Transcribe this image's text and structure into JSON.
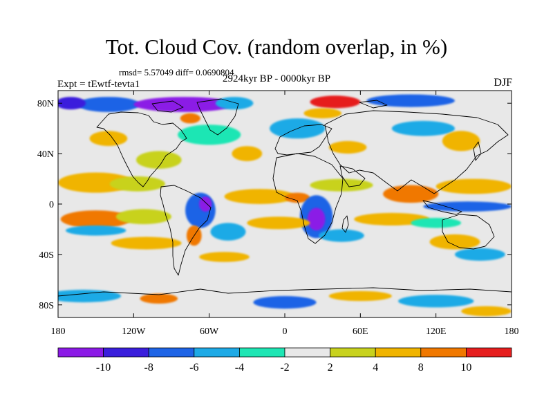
{
  "header": {
    "title": "Tot. Cloud Cov. (random overlap, in %)",
    "stats": "rmsd= 5.57049 diff= 0.0690804",
    "period": "2924kyr BP - 0000kyr BP",
    "experiment": "Expt = tEwtf-tevta1",
    "season": "DJF"
  },
  "map": {
    "type": "contour-filled",
    "lon_range": [
      -180,
      180
    ],
    "lat_range": [
      -90,
      90
    ],
    "lon_ticks": [
      {
        "value": -180,
        "label": "180"
      },
      {
        "value": -120,
        "label": "120W"
      },
      {
        "value": -60,
        "label": "60W"
      },
      {
        "value": 0,
        "label": "0"
      },
      {
        "value": 60,
        "label": "60E"
      },
      {
        "value": 120,
        "label": "120E"
      },
      {
        "value": 180,
        "label": "180"
      }
    ],
    "lat_ticks": [
      {
        "value": 80,
        "label": "80N"
      },
      {
        "value": 40,
        "label": "40N"
      },
      {
        "value": 0,
        "label": "0"
      },
      {
        "value": -40,
        "label": "40S"
      },
      {
        "value": -80,
        "label": "80S"
      }
    ],
    "background_color": "#e8e8e8",
    "regions": [
      {
        "bin": 2,
        "lon": -150,
        "lat": 17,
        "rx": 30,
        "ry": 8
      },
      {
        "bin": 1,
        "lon": -117,
        "lat": 16,
        "rx": 22,
        "ry": 6
      },
      {
        "bin": 3,
        "lon": -150,
        "lat": -12,
        "rx": 28,
        "ry": 7
      },
      {
        "bin": 1,
        "lon": -112,
        "lat": -10,
        "rx": 22,
        "ry": 6
      },
      {
        "bin": -2,
        "lon": -150,
        "lat": -21,
        "rx": 24,
        "ry": 4
      },
      {
        "bin": 2,
        "lon": -110,
        "lat": -31,
        "rx": 28,
        "ry": 5
      },
      {
        "bin": -3,
        "lon": -67,
        "lat": -5,
        "rx": 12,
        "ry": 14
      },
      {
        "bin": -5,
        "lon": -63,
        "lat": 0,
        "rx": 5,
        "ry": 6
      },
      {
        "bin": -2,
        "lon": -45,
        "lat": -22,
        "rx": 14,
        "ry": 7
      },
      {
        "bin": 3,
        "lon": -72,
        "lat": -25,
        "rx": 6,
        "ry": 8
      },
      {
        "bin": 2,
        "lon": -48,
        "lat": -42,
        "rx": 20,
        "ry": 4
      },
      {
        "bin": 2,
        "lon": -20,
        "lat": 6,
        "rx": 28,
        "ry": 6
      },
      {
        "bin": 3,
        "lon": 10,
        "lat": 5,
        "rx": 10,
        "ry": 4
      },
      {
        "bin": 1,
        "lon": 45,
        "lat": 15,
        "rx": 25,
        "ry": 5
      },
      {
        "bin": -3,
        "lon": 25,
        "lat": -10,
        "rx": 13,
        "ry": 17
      },
      {
        "bin": -5,
        "lon": 25,
        "lat": -12,
        "rx": 7,
        "ry": 9
      },
      {
        "bin": -2,
        "lon": 45,
        "lat": -25,
        "rx": 18,
        "ry": 5
      },
      {
        "bin": 2,
        "lon": -5,
        "lat": -15,
        "rx": 25,
        "ry": 5
      },
      {
        "bin": 3,
        "lon": 100,
        "lat": 8,
        "rx": 22,
        "ry": 7
      },
      {
        "bin": 2,
        "lon": 150,
        "lat": 14,
        "rx": 30,
        "ry": 6
      },
      {
        "bin": -3,
        "lon": 145,
        "lat": -2,
        "rx": 35,
        "ry": 4
      },
      {
        "bin": 2,
        "lon": 85,
        "lat": -12,
        "rx": 30,
        "ry": 5
      },
      {
        "bin": -1,
        "lon": 120,
        "lat": -15,
        "rx": 20,
        "ry": 4
      },
      {
        "bin": 2,
        "lon": 135,
        "lat": -30,
        "rx": 20,
        "ry": 6
      },
      {
        "bin": -2,
        "lon": 155,
        "lat": -40,
        "rx": 20,
        "ry": 5
      },
      {
        "bin": 1,
        "lon": -100,
        "lat": 35,
        "rx": 18,
        "ry": 7
      },
      {
        "bin": -1,
        "lon": -60,
        "lat": 55,
        "rx": 25,
        "ry": 8
      },
      {
        "bin": 2,
        "lon": -30,
        "lat": 40,
        "rx": 12,
        "ry": 6
      },
      {
        "bin": -2,
        "lon": 10,
        "lat": 60,
        "rx": 22,
        "ry": 8
      },
      {
        "bin": 2,
        "lon": 50,
        "lat": 45,
        "rx": 15,
        "ry": 5
      },
      {
        "bin": -2,
        "lon": 110,
        "lat": 60,
        "rx": 25,
        "ry": 6
      },
      {
        "bin": 2,
        "lon": 140,
        "lat": 50,
        "rx": 15,
        "ry": 8
      },
      {
        "bin": 2,
        "lon": -140,
        "lat": 52,
        "rx": 15,
        "ry": 6
      },
      {
        "bin": -3,
        "lon": -140,
        "lat": 79,
        "rx": 25,
        "ry": 6
      },
      {
        "bin": -5,
        "lon": -80,
        "lat": 79,
        "rx": 40,
        "ry": 6
      },
      {
        "bin": -2,
        "lon": -40,
        "lat": 80,
        "rx": 15,
        "ry": 5
      },
      {
        "bin": 4,
        "lon": 40,
        "lat": 81,
        "rx": 20,
        "ry": 5
      },
      {
        "bin": -3,
        "lon": 100,
        "lat": 82,
        "rx": 35,
        "ry": 5
      },
      {
        "bin": -4,
        "lon": -170,
        "lat": 80,
        "rx": 12,
        "ry": 5
      },
      {
        "bin": 3,
        "lon": -75,
        "lat": 68,
        "rx": 8,
        "ry": 4
      },
      {
        "bin": 2,
        "lon": 30,
        "lat": 72,
        "rx": 15,
        "ry": 4
      },
      {
        "bin": -2,
        "lon": -160,
        "lat": -73,
        "rx": 30,
        "ry": 5
      },
      {
        "bin": 3,
        "lon": -100,
        "lat": -75,
        "rx": 15,
        "ry": 4
      },
      {
        "bin": -3,
        "lon": 0,
        "lat": -78,
        "rx": 25,
        "ry": 5
      },
      {
        "bin": 2,
        "lon": 60,
        "lat": -73,
        "rx": 25,
        "ry": 4
      },
      {
        "bin": -2,
        "lon": 120,
        "lat": -77,
        "rx": 30,
        "ry": 5
      },
      {
        "bin": 2,
        "lon": 160,
        "lat": -85,
        "rx": 20,
        "ry": 4
      }
    ]
  },
  "colorbar": {
    "levels": [
      -10,
      -8,
      -6,
      -4,
      -2,
      2,
      4,
      8,
      10
    ],
    "colors": [
      "#8b1ae6",
      "#3a1edc",
      "#1e64e6",
      "#1eaae6",
      "#1ee6b4",
      "#e8e8e8",
      "#c8d21e",
      "#f0b400",
      "#f07800",
      "#e61e1e"
    ],
    "labels": [
      "-10",
      "-8",
      "-6",
      "-4",
      "-2",
      "2",
      "4",
      "8",
      "10"
    ]
  }
}
